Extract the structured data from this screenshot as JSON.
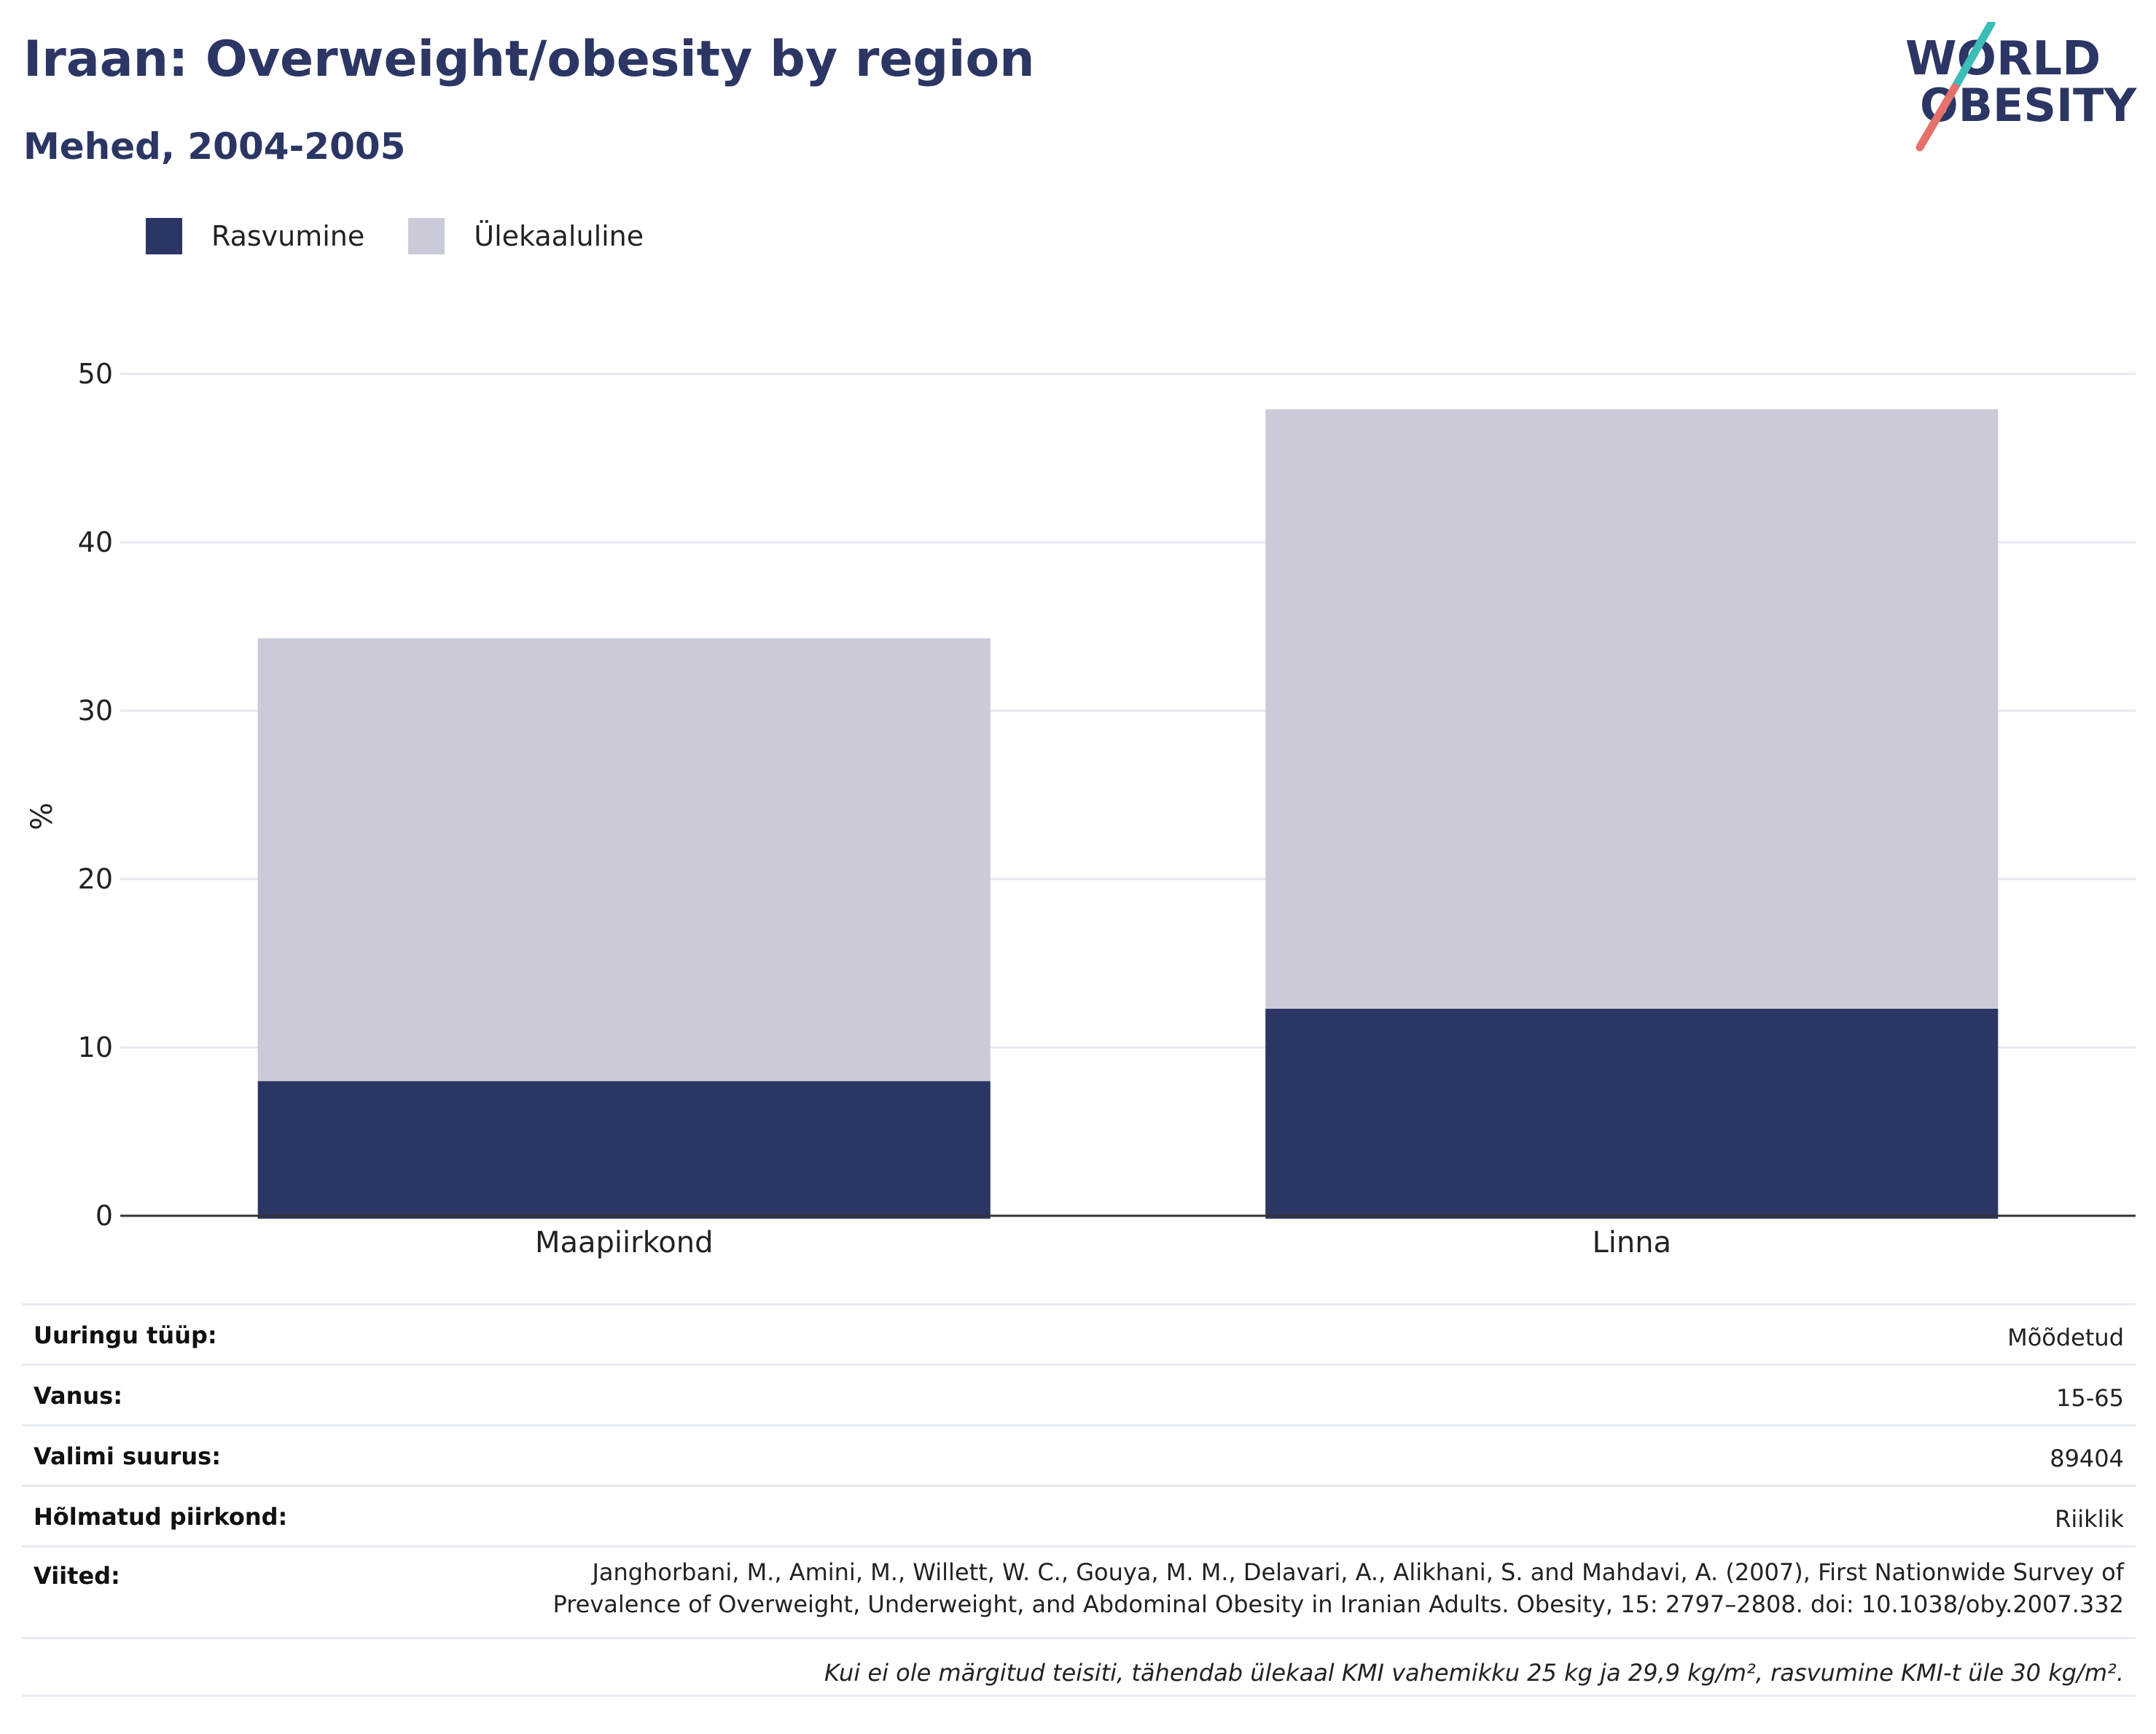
{
  "header": {
    "title": "Iraan: Overweight/obesity by region",
    "subtitle": "Mehed, 2004-2005"
  },
  "logo": {
    "line1": "WORLD",
    "line2": "OBESITY",
    "colors": {
      "text": "#2b3664",
      "slash_top": "#3dbdb7",
      "slash_bottom": "#e4716a"
    }
  },
  "legend": [
    {
      "label": "Rasvumine",
      "color": "#2b3664"
    },
    {
      "label": "Ülekaaluline",
      "color": "#c9ccd8"
    }
  ],
  "chart_data": {
    "type": "bar",
    "stacked": true,
    "categories": [
      "Maapiirkond",
      "Linna"
    ],
    "series": [
      {
        "name": "Rasvumine",
        "values": [
          8.0,
          12.3
        ],
        "color": "#2b3664"
      },
      {
        "name": "Ülekaaluline",
        "values": [
          26.3,
          35.6
        ],
        "color": "#c9ccd8"
      }
    ],
    "ylabel": "%",
    "ylim": [
      0,
      50
    ],
    "yticks": [
      0,
      10,
      20,
      30,
      40,
      50
    ],
    "grid": true,
    "legend_position": "top-left"
  },
  "info": {
    "survey_type": {
      "label": "Uuringu tüüp:",
      "value": "Mõõdetud"
    },
    "age": {
      "label": "Vanus:",
      "value": "15-65"
    },
    "sample_size": {
      "label": "Valimi suurus:",
      "value": "89404"
    },
    "area": {
      "label": "Hõlmatud piirkond:",
      "value": "Riiklik"
    },
    "references": {
      "label": "Viited:",
      "line1": "Janghorbani, M., Amini, M., Willett, W. C., Gouya, M. M., Delavari, A., Alikhani, S. and Mahdavi, A. (2007), First Nationwide Survey of",
      "line2": "Prevalence of Overweight, Underweight, and Abdominal Obesity in Iranian Adults. Obesity, 15: 2797–2808. doi: 10.1038/oby.2007.332"
    },
    "note": "Kui ei ole märgitud teisiti, tähendab ülekaal KMI vahemikku 25 kg ja 29,9 kg/m², rasvumine KMI-t üle 30 kg/m²."
  }
}
